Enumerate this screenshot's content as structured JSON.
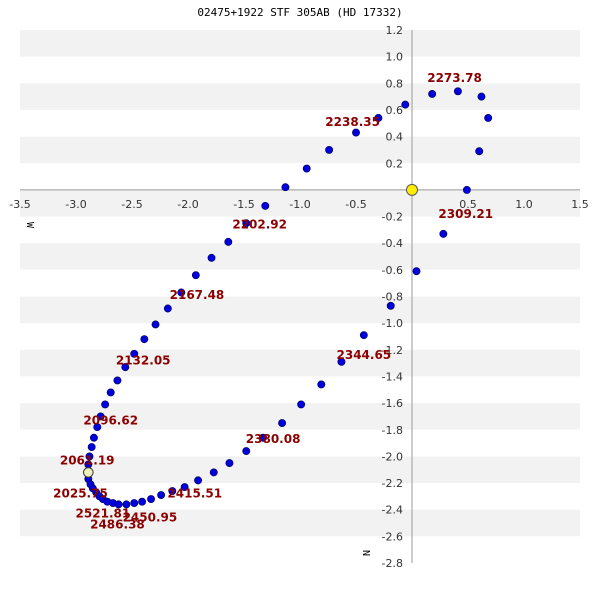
{
  "chart_data": {
    "type": "scatter",
    "title": "02475+1922 STF 305AB (HD 17332)",
    "xlim": [
      -3.5,
      1.5
    ],
    "ylim": [
      -2.8,
      1.2
    ],
    "x_ticks": [
      -3.5,
      -3.0,
      -2.5,
      -2.0,
      -1.5,
      -1.0,
      -0.5,
      0.5,
      1.0,
      1.5
    ],
    "y_ticks": [
      1.2,
      1.0,
      0.8,
      0.6,
      0.4,
      0.2,
      -0.2,
      -0.4,
      -0.6,
      -0.8,
      -1.0,
      -1.2,
      -1.4,
      -1.6,
      -1.8,
      -2.0,
      -2.2,
      -2.4,
      -2.6,
      -2.8
    ],
    "x_tick_labels": [
      "-3.5",
      "-3.0",
      "-2.5",
      "-2.0",
      "-1.5",
      "-1.0",
      "-0.5",
      "0.5",
      "1.0",
      "1.5"
    ],
    "y_tick_labels": [
      "1.2",
      "1.0",
      "0.8",
      "0.6",
      "0.4",
      "0.2",
      "-0.2",
      "-0.4",
      "-0.6",
      "-0.8",
      "-1.0",
      "-1.2",
      "-1.4",
      "-1.6",
      "-1.8",
      "-2.0",
      "-2.2",
      "-2.4",
      "-2.6",
      "-2.8"
    ],
    "axis_label_x": "W",
    "axis_label_y": "N",
    "grid": "horizontal bands",
    "colors": {
      "point": "#0000dd",
      "point_edge": "#000066",
      "primary": "#ffee00",
      "band": "#f2f2f2",
      "annotation": "#8b0000",
      "axis": "#999999"
    },
    "primary": {
      "x": 0.0,
      "y": 0.0
    },
    "current_position": {
      "x": -2.89,
      "y": -2.12
    },
    "orbit_points": [
      [
        -0.06,
        0.64
      ],
      [
        -0.5,
        0.43
      ],
      [
        -0.74,
        0.3
      ],
      [
        -0.94,
        0.16
      ],
      [
        -1.13,
        0.02
      ],
      [
        -1.31,
        -0.12
      ],
      [
        -1.48,
        -0.25
      ],
      [
        -1.64,
        -0.39
      ],
      [
        -1.79,
        -0.51
      ],
      [
        -1.93,
        -0.64
      ],
      [
        -2.06,
        -0.77
      ],
      [
        -2.18,
        -0.89
      ],
      [
        -2.29,
        -1.01
      ],
      [
        -2.39,
        -1.12
      ],
      [
        -2.48,
        -1.23
      ],
      [
        -2.56,
        -1.33
      ],
      [
        -2.63,
        -1.43
      ],
      [
        -2.69,
        -1.52
      ],
      [
        -2.74,
        -1.61
      ],
      [
        -2.78,
        -1.7
      ],
      [
        -2.81,
        -1.78
      ],
      [
        -2.84,
        -1.86
      ],
      [
        -2.86,
        -1.93
      ],
      [
        -2.88,
        -2.0
      ],
      [
        -2.89,
        -2.06
      ],
      [
        -2.89,
        -2.12
      ],
      [
        -2.89,
        -2.17
      ],
      [
        -2.87,
        -2.21
      ],
      [
        -2.85,
        -2.24
      ],
      [
        -2.82,
        -2.27
      ],
      [
        -2.79,
        -2.3
      ],
      [
        -2.76,
        -2.32
      ],
      [
        -2.72,
        -2.34
      ],
      [
        -2.67,
        -2.35
      ],
      [
        -2.62,
        -2.36
      ],
      [
        -2.55,
        -2.36
      ],
      [
        -2.48,
        -2.35
      ],
      [
        -2.41,
        -2.34
      ],
      [
        -2.33,
        -2.32
      ],
      [
        -2.24,
        -2.29
      ],
      [
        -2.14,
        -2.26
      ],
      [
        -2.03,
        -2.23
      ],
      [
        -1.91,
        -2.18
      ],
      [
        -1.77,
        -2.12
      ],
      [
        -1.63,
        -2.05
      ],
      [
        -1.48,
        -1.96
      ],
      [
        -1.33,
        -1.86
      ],
      [
        -1.16,
        -1.75
      ],
      [
        -0.99,
        -1.61
      ],
      [
        -0.81,
        -1.46
      ],
      [
        -0.63,
        -1.29
      ],
      [
        -0.43,
        -1.09
      ],
      [
        -0.19,
        -0.87
      ],
      [
        0.04,
        -0.61
      ],
      [
        0.28,
        -0.33
      ],
      [
        0.49,
        0.0
      ],
      [
        0.6,
        0.29
      ],
      [
        0.68,
        0.54
      ],
      [
        0.62,
        0.7
      ],
      [
        0.41,
        0.74
      ],
      [
        0.18,
        0.72
      ],
      [
        -0.3,
        0.54
      ]
    ],
    "annotations": [
      {
        "label": "2273.78",
        "x": 0.38,
        "y": 0.84
      },
      {
        "label": "2238.35",
        "x": -0.53,
        "y": 0.51
      },
      {
        "label": "2309.21",
        "x": 0.48,
        "y": -0.18
      },
      {
        "label": "2202.92",
        "x": -1.36,
        "y": -0.26
      },
      {
        "label": "2167.48",
        "x": -1.92,
        "y": -0.79
      },
      {
        "label": "2132.05",
        "x": -2.4,
        "y": -1.28
      },
      {
        "label": "2096.62",
        "x": -2.69,
        "y": -1.73
      },
      {
        "label": "2061.19",
        "x": -2.9,
        "y": -2.03
      },
      {
        "label": "2025.75",
        "x": -2.96,
        "y": -2.28
      },
      {
        "label": "2521.81",
        "x": -2.76,
        "y": -2.43
      },
      {
        "label": "2486.38",
        "x": -2.63,
        "y": -2.51
      },
      {
        "label": "2450.95",
        "x": -2.34,
        "y": -2.46
      },
      {
        "label": "2415.51",
        "x": -1.94,
        "y": -2.28
      },
      {
        "label": "2380.08",
        "x": -1.24,
        "y": -1.87
      },
      {
        "label": "2344.65",
        "x": -0.43,
        "y": -1.24
      }
    ]
  }
}
